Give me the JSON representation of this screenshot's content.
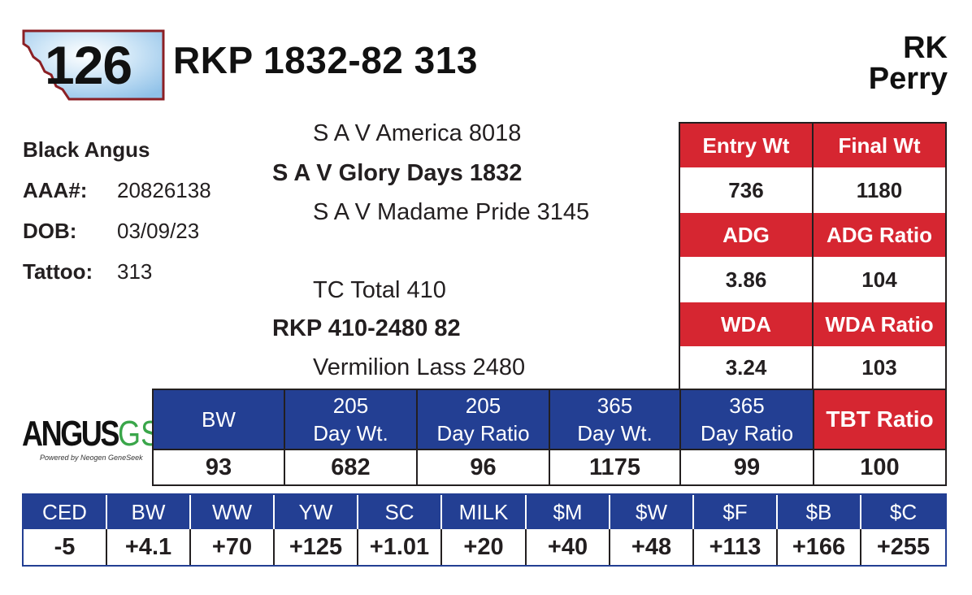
{
  "header": {
    "lot_number": "126",
    "animal_name": "RKP 1832-82 313",
    "consignor_line1": "RK",
    "consignor_line2": "Perry"
  },
  "info": {
    "breed": "Black Angus",
    "aaa_label": "AAA#:",
    "aaa_value": "20826138",
    "dob_label": "DOB:",
    "dob_value": "03/09/23",
    "tattoo_label": "Tattoo:",
    "tattoo_value": "313"
  },
  "pedigree": {
    "sire_sire": "S A V America 8018",
    "sire": "S A V Glory Days 1832",
    "sire_dam": "S A V Madame Pride 3145",
    "dam_sire": "TC Total 410",
    "dam": "RKP 410-2480 82",
    "dam_dam": "Vermilion Lass 2480"
  },
  "performance": {
    "entry_wt_label": "Entry Wt",
    "final_wt_label": "Final Wt",
    "entry_wt": "736",
    "final_wt": "1180",
    "adg_label": "ADG",
    "adg_ratio_label": "ADG Ratio",
    "adg": "3.86",
    "adg_ratio": "104",
    "wda_label": "WDA",
    "wda_ratio_label": "WDA Ratio",
    "wda": "3.24",
    "wda_ratio": "103"
  },
  "weights": {
    "headers": [
      {
        "line1": "BW",
        "line2": ""
      },
      {
        "line1": "205",
        "line2": "Day Wt."
      },
      {
        "line1": "205",
        "line2": "Day Ratio"
      },
      {
        "line1": "365",
        "line2": "Day Wt."
      },
      {
        "line1": "365",
        "line2": "Day Ratio"
      },
      {
        "line1": "TBT Ratio",
        "line2": ""
      }
    ],
    "values": [
      "93",
      "682",
      "96",
      "1175",
      "99",
      "100"
    ]
  },
  "epd": {
    "headers": [
      "CED",
      "BW",
      "WW",
      "YW",
      "SC",
      "MILK",
      "$M",
      "$W",
      "$F",
      "$B",
      "$C"
    ],
    "values": [
      "-5",
      "+4.1",
      "+70",
      "+125",
      "+1.01",
      "+20",
      "+40",
      "+48",
      "+113",
      "+166",
      "+255"
    ]
  },
  "logo": {
    "word": "ANGUS",
    "suffix": "GS",
    "tagline": "Powered by Neogen GeneSeek"
  },
  "colors": {
    "red": "#d62631",
    "blue": "#233f93",
    "badge_border": "#8b1f24",
    "logo_green": "#3aa64a"
  }
}
